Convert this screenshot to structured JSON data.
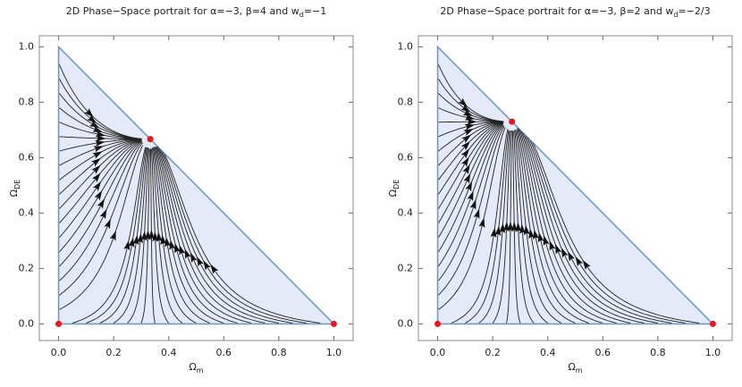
{
  "chart_data": [
    {
      "type": "streamplot",
      "title": "2D Phase−Space portrait for α=−3, β=4 and w",
      "title_sub": "d",
      "title_end": "=−1",
      "xlabel": "Ω",
      "xlabel_sub": "m",
      "ylabel": "Ω",
      "ylabel_sub": "DE",
      "x": [
        0,
        1,
        0.333
      ],
      "values": [
        0,
        0,
        0.667
      ],
      "color": "#e8141e",
      "xlim": [
        -0.07,
        1.07
      ],
      "ylim": [
        -0.06,
        1.04
      ],
      "xticks": [
        {
          "value": 0,
          "label": "0.0"
        },
        {
          "value": 0.2,
          "label": "0.2"
        },
        {
          "value": 0.4,
          "label": "0.4"
        },
        {
          "value": 0.6,
          "label": "0.6"
        },
        {
          "value": 0.8,
          "label": "0.8"
        },
        {
          "value": 1,
          "label": "1.0"
        }
      ],
      "yticks": [
        {
          "value": 0,
          "label": "0.0"
        },
        {
          "value": 0.2,
          "label": "0.2"
        },
        {
          "value": 0.4,
          "label": "0.4"
        },
        {
          "value": 0.6,
          "label": "0.6"
        },
        {
          "value": 0.8,
          "label": "0.8"
        },
        {
          "value": 1,
          "label": "1.0"
        }
      ]
    },
    {
      "type": "streamplot",
      "title": "2D Phase−Space portrait for α=−3, β=2 and w",
      "title_sub": "d",
      "title_end": "=−2/3",
      "xlabel": "Ω",
      "xlabel_sub": "m",
      "ylabel": "Ω",
      "ylabel_sub": "DE",
      "x": [
        0,
        1,
        0.27
      ],
      "values": [
        0,
        0,
        0.73
      ],
      "color": "#e8141e",
      "xlim": [
        -0.07,
        1.07
      ],
      "ylim": [
        -0.06,
        1.04
      ],
      "xticks": [
        {
          "value": 0,
          "label": "0.0"
        },
        {
          "value": 0.2,
          "label": "0.2"
        },
        {
          "value": 0.4,
          "label": "0.4"
        },
        {
          "value": 0.6,
          "label": "0.6"
        },
        {
          "value": 0.8,
          "label": "0.8"
        },
        {
          "value": 1,
          "label": "1.0"
        }
      ],
      "yticks": [
        {
          "value": 0,
          "label": "0.0"
        },
        {
          "value": 0.2,
          "label": "0.2"
        },
        {
          "value": 0.4,
          "label": "0.4"
        },
        {
          "value": 0.6,
          "label": "0.6"
        },
        {
          "value": 0.8,
          "label": "0.8"
        },
        {
          "value": 1,
          "label": "1.0"
        }
      ]
    }
  ]
}
